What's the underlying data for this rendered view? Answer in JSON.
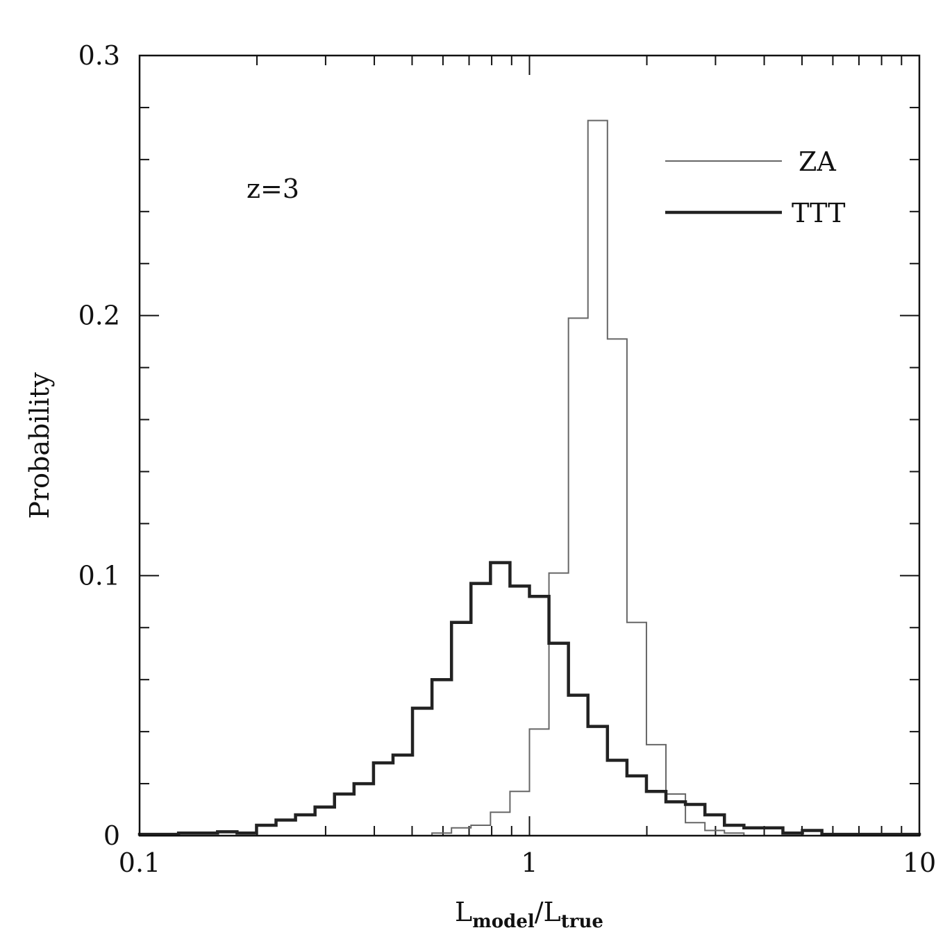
{
  "chart_data": {
    "type": "histogram-step",
    "title": "",
    "annotation": "z=3",
    "xlabel": {
      "main": "L",
      "sub1": "model",
      "sep": "/",
      "main2": "L",
      "sub2": "true"
    },
    "ylabel": "Probability",
    "xscale": "log",
    "xlim": [
      0.1,
      10
    ],
    "ylim": [
      0,
      0.3
    ],
    "xticks": [
      {
        "value": 0.1,
        "label": "0.1"
      },
      {
        "value": 1,
        "label": "1"
      },
      {
        "value": 10,
        "label": "10"
      }
    ],
    "yticks": [
      {
        "value": 0,
        "label": "0"
      },
      {
        "value": 0.1,
        "label": "0.1"
      },
      {
        "value": 0.2,
        "label": "0.2"
      },
      {
        "value": 0.3,
        "label": "0.3"
      }
    ],
    "legend_position": "top-right",
    "bin_edges_log10": [
      -1.0,
      -0.95,
      -0.9,
      -0.85,
      -0.8,
      -0.75,
      -0.7,
      -0.65,
      -0.6,
      -0.55,
      -0.5,
      -0.45,
      -0.4,
      -0.35,
      -0.3,
      -0.25,
      -0.2,
      -0.15,
      -0.1,
      -0.05,
      0.0,
      0.05,
      0.1,
      0.15,
      0.2,
      0.25,
      0.3,
      0.35,
      0.4,
      0.45,
      0.5,
      0.55,
      0.6,
      0.65,
      0.7,
      0.75,
      0.8,
      0.85,
      0.9,
      0.95,
      1.0
    ],
    "series": [
      {
        "name": "ZA",
        "style": "thin",
        "color": "#666666",
        "values": [
          0,
          0,
          0,
          0,
          0,
          0,
          0,
          0,
          0,
          0,
          0,
          0,
          0,
          0,
          0,
          0.001,
          0.003,
          0.004,
          0.009,
          0.017,
          0.041,
          0.101,
          0.199,
          0.275,
          0.191,
          0.082,
          0.035,
          0.016,
          0.005,
          0.002,
          0.001,
          0,
          0,
          0,
          0,
          0,
          0,
          0,
          0,
          0
        ]
      },
      {
        "name": "TTT",
        "style": "thick",
        "color": "#222222",
        "values": [
          0.0005,
          0.0005,
          0.001,
          0.001,
          0.0015,
          0.001,
          0.004,
          0.006,
          0.008,
          0.011,
          0.016,
          0.02,
          0.028,
          0.031,
          0.049,
          0.06,
          0.082,
          0.097,
          0.105,
          0.096,
          0.092,
          0.074,
          0.054,
          0.042,
          0.029,
          0.023,
          0.017,
          0.013,
          0.012,
          0.008,
          0.004,
          0.003,
          0.003,
          0.001,
          0.002,
          0.0005,
          0.0005,
          0.0005,
          0.0005,
          0.0005
        ]
      }
    ]
  }
}
